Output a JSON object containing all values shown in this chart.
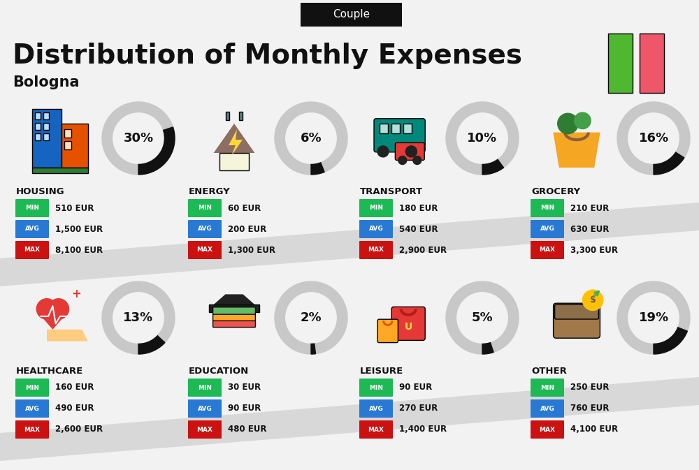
{
  "title": "Distribution of Monthly Expenses",
  "subtitle": "Bologna",
  "tag": "Couple",
  "bg_color": "#f2f2f2",
  "categories": [
    {
      "name": "HOUSING",
      "pct": 30,
      "min": "510 EUR",
      "avg": "1,500 EUR",
      "max": "8,100 EUR",
      "row": 0,
      "col": 0
    },
    {
      "name": "ENERGY",
      "pct": 6,
      "min": "60 EUR",
      "avg": "200 EUR",
      "max": "1,300 EUR",
      "row": 0,
      "col": 1
    },
    {
      "name": "TRANSPORT",
      "pct": 10,
      "min": "180 EUR",
      "avg": "540 EUR",
      "max": "2,900 EUR",
      "row": 0,
      "col": 2
    },
    {
      "name": "GROCERY",
      "pct": 16,
      "min": "210 EUR",
      "avg": "630 EUR",
      "max": "3,300 EUR",
      "row": 0,
      "col": 3
    },
    {
      "name": "HEALTHCARE",
      "pct": 13,
      "min": "160 EUR",
      "avg": "490 EUR",
      "max": "2,600 EUR",
      "row": 1,
      "col": 0
    },
    {
      "name": "EDUCATION",
      "pct": 2,
      "min": "30 EUR",
      "avg": "90 EUR",
      "max": "480 EUR",
      "row": 1,
      "col": 1
    },
    {
      "name": "LEISURE",
      "pct": 5,
      "min": "90 EUR",
      "avg": "270 EUR",
      "max": "1,400 EUR",
      "row": 1,
      "col": 2
    },
    {
      "name": "OTHER",
      "pct": 19,
      "min": "250 EUR",
      "avg": "760 EUR",
      "max": "4,100 EUR",
      "row": 1,
      "col": 3
    }
  ],
  "min_color": "#1db954",
  "avg_color": "#2879d4",
  "max_color": "#cc1111",
  "text_color": "#111111",
  "circle_bg": "#c8c8c8",
  "circle_arc": "#111111",
  "italian_green": "#4db830",
  "italian_red": "#f0566a",
  "stripe_color": "#d8d8d8",
  "white": "#ffffff"
}
